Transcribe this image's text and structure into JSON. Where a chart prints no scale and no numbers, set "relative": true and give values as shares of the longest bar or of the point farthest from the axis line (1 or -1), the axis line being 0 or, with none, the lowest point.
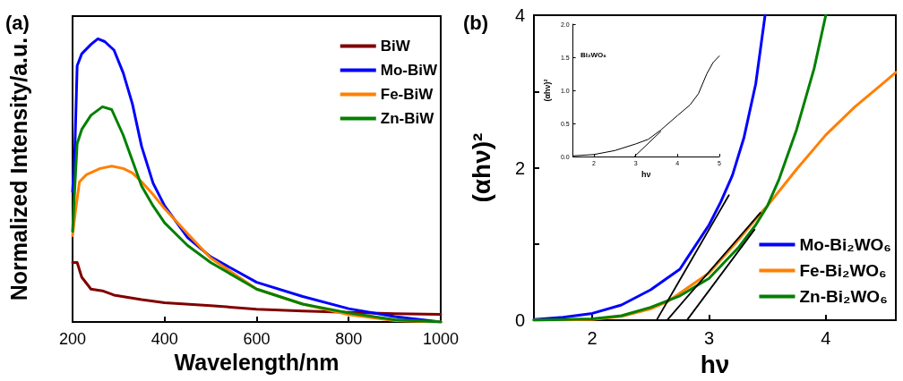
{
  "chart_data": [
    {
      "type": "line",
      "xlabel": "Wavelength/nm",
      "ylabel": "Normalized Intensity/a.u.",
      "relative": true,
      "xlim": [
        200,
        1000
      ],
      "xticks": [
        200,
        400,
        600,
        800,
        1000
      ],
      "legend": "top right",
      "grid": false,
      "annotations": [
        "(a)"
      ],
      "series": [
        {
          "name": "BiW",
          "color": "#800000",
          "x": [
            200,
            210,
            220,
            240,
            265,
            290,
            350,
            400,
            500,
            600,
            700,
            800,
            900,
            1000
          ],
          "values": [
            0.21,
            0.21,
            0.158,
            0.116,
            0.11,
            0.095,
            0.079,
            0.068,
            0.058,
            0.045,
            0.039,
            0.034,
            0.029,
            0.027
          ]
        },
        {
          "name": "Mo-BiW",
          "color": "#0000ff",
          "x": [
            200,
            205,
            210,
            220,
            240,
            255,
            270,
            290,
            310,
            330,
            350,
            375,
            400,
            450,
            500,
            600,
            700,
            800,
            900,
            1000
          ],
          "values": [
            0.46,
            0.61,
            0.905,
            0.947,
            0.98,
            1,
            0.99,
            0.96,
            0.88,
            0.77,
            0.62,
            0.49,
            0.41,
            0.298,
            0.23,
            0.14,
            0.09,
            0.047,
            0.019,
            0
          ]
        },
        {
          "name": "Fe-BiW",
          "color": "#ff8000",
          "x": [
            200,
            207,
            215,
            230,
            260,
            285,
            310,
            330,
            350,
            375,
            400,
            450,
            500,
            600,
            700,
            800,
            900,
            1000
          ],
          "values": [
            0.305,
            0.4,
            0.495,
            0.52,
            0.542,
            0.55,
            0.542,
            0.526,
            0.495,
            0.45,
            0.4,
            0.312,
            0.226,
            0.116,
            0.063,
            0.026,
            0.005,
            0
          ]
        },
        {
          "name": "Zn-BiW",
          "color": "#008000",
          "x": [
            200,
            205,
            210,
            220,
            240,
            265,
            285,
            310,
            330,
            350,
            375,
            400,
            450,
            500,
            600,
            700,
            800,
            900,
            1000
          ],
          "values": [
            0.32,
            0.48,
            0.63,
            0.68,
            0.73,
            0.76,
            0.75,
            0.66,
            0.57,
            0.48,
            0.41,
            0.35,
            0.27,
            0.21,
            0.116,
            0.063,
            0.032,
            0.008,
            0
          ]
        }
      ]
    },
    {
      "type": "line",
      "xlabel": "hν",
      "ylabel": "(αhν)²",
      "xlim": [
        1.5,
        4.6
      ],
      "xticks": [
        2,
        3,
        4
      ],
      "ylim": [
        0,
        4
      ],
      "yticks": [
        0,
        {
          "value": 1,
          "label": null
        },
        2,
        {
          "value": 3,
          "label": null
        },
        4
      ],
      "legend": "bottom right",
      "grid": false,
      "annotations": [
        "(b)"
      ],
      "series": [
        {
          "name": "Mo-Bi₂WO₆",
          "color": "#0000ff",
          "x": [
            1.5,
            1.75,
            2,
            2.25,
            2.5,
            2.75,
            3,
            3.1,
            3.2,
            3.3,
            3.4,
            3.48
          ],
          "values": [
            0.01,
            0.04,
            0.09,
            0.2,
            0.4,
            0.67,
            1.25,
            1.55,
            1.9,
            2.4,
            3.1,
            4
          ]
        },
        {
          "name": "Fe-Bi₂WO₆",
          "color": "#ff8000",
          "x": [
            1.5,
            2,
            2.25,
            2.5,
            2.65,
            3,
            3.25,
            3.45,
            3.5,
            3.75,
            4,
            4.25,
            4.5,
            4.6
          ],
          "values": [
            0,
            0.01,
            0.05,
            0.15,
            0.25,
            0.62,
            1.05,
            1.42,
            1.5,
            1.98,
            2.43,
            2.8,
            3.12,
            3.25
          ]
        },
        {
          "name": "Zn-Bi₂WO₆",
          "color": "#008000",
          "x": [
            1.5,
            2,
            2.25,
            2.5,
            2.75,
            3,
            3.25,
            3.4,
            3.5,
            3.6,
            3.75,
            3.9,
            4
          ],
          "values": [
            0,
            0.02,
            0.06,
            0.17,
            0.32,
            0.55,
            0.95,
            1.25,
            1.5,
            1.85,
            2.5,
            3.3,
            4
          ]
        },
        {
          "color": "#000000",
          "x": [
            2.55,
            3.17
          ],
          "values": [
            0,
            1.64
          ]
        },
        {
          "color": "#000000",
          "x": [
            2.64,
            3.44
          ],
          "values": [
            0,
            1.41
          ]
        },
        {
          "color": "#000000",
          "x": [
            2.81,
            3.39
          ],
          "values": [
            0,
            1.19
          ]
        }
      ]
    },
    {
      "type": "line",
      "xlabel": "hν",
      "ylabel": "(αhν)²",
      "xlim": [
        1.5,
        5
      ],
      "xticks": [
        2,
        3,
        4,
        5
      ],
      "ylim": [
        0,
        2
      ],
      "yticks": [
        {
          "value": 0,
          "label": "0.0"
        },
        {
          "value": 0.5,
          "label": "0.5"
        },
        {
          "value": 1,
          "label": "1.0"
        },
        {
          "value": 1.5,
          "label": "1.5"
        },
        {
          "value": 2,
          "label": "2.0"
        }
      ],
      "grid": false,
      "annotations": [
        "Bi₂WO₆"
      ],
      "series": [
        {
          "color": "#000000",
          "x": [
            1.5,
            2,
            2.5,
            3,
            3.3,
            3.6,
            4,
            4.3,
            4.5,
            4.7,
            4.85,
            5
          ],
          "values": [
            0.01,
            0.03,
            0.09,
            0.19,
            0.26,
            0.4,
            0.62,
            0.78,
            0.95,
            1.25,
            1.42,
            1.52
          ]
        },
        {
          "color": "#000000",
          "x": [
            2.97,
            3.6
          ],
          "values": [
            0,
            0.38
          ]
        }
      ]
    }
  ]
}
